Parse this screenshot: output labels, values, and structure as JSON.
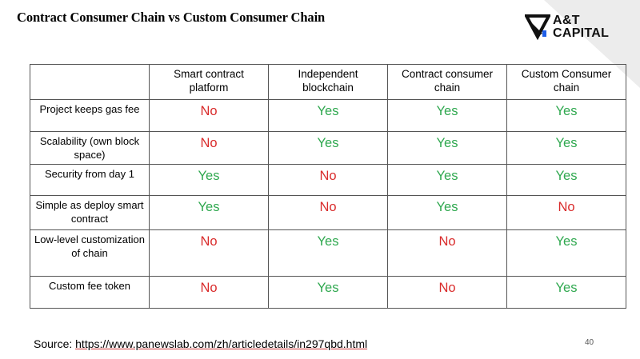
{
  "title": "Contract Consumer Chain vs Custom Consumer Chain",
  "logo": {
    "line1": "A&T",
    "line2": "CAPITAL"
  },
  "table": {
    "headers": [
      "",
      "Smart contract platform",
      "Independent blockchain",
      "Contract consumer chain",
      "Custom Consumer chain"
    ],
    "rows": [
      {
        "label": "Project keeps gas fee",
        "values": [
          "No",
          "Yes",
          "Yes",
          "Yes"
        ]
      },
      {
        "label": "Scalability (own block space)",
        "values": [
          "No",
          "Yes",
          "Yes",
          "Yes"
        ]
      },
      {
        "label": "Security from day 1",
        "values": [
          "Yes",
          "No",
          "Yes",
          "Yes"
        ]
      },
      {
        "label": "Simple as deploy smart contract",
        "values": [
          "Yes",
          "No",
          "Yes",
          "No"
        ]
      },
      {
        "label": "Low-level customization of chain",
        "values": [
          "No",
          "Yes",
          "No",
          "Yes"
        ]
      },
      {
        "label": "Custom fee token",
        "values": [
          "No",
          "Yes",
          "No",
          "Yes"
        ]
      }
    ]
  },
  "source": {
    "prefix": "Source: ",
    "url": "https://www.panewslab.com/zh/articledetails/in297qbd.html"
  },
  "page_number": "40",
  "colors": {
    "yes": "#2fa84f",
    "no": "#d92b2b"
  }
}
